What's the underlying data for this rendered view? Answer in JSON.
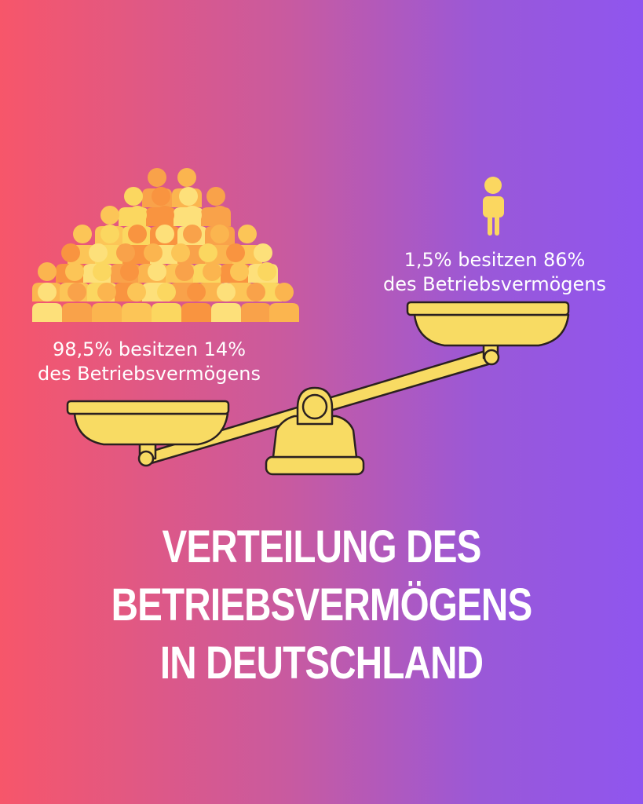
{
  "groups": {
    "many": {
      "line1": "98,5% besitzen 14%",
      "line2": "des Betriebsvermögens"
    },
    "few": {
      "line1": "1,5% besitzen 86%",
      "line2": "des Betriebsvermögens"
    }
  },
  "title": {
    "line1": "VERTEILUNG DES",
    "line2": "BETRIEBSVERMÖGENS",
    "line3": "IN DEUTSCHLAND"
  },
  "colors": {
    "gradient_start": "#f7566a",
    "gradient_end": "#8f55ef",
    "scale_gold": "#f8db63",
    "outline": "#2a2020",
    "crowd_orange": "#f9a24a",
    "crowd_yellow": "#fbd760"
  },
  "icons": [
    "crowd-icon",
    "person-icon",
    "balance-scale-icon"
  ]
}
